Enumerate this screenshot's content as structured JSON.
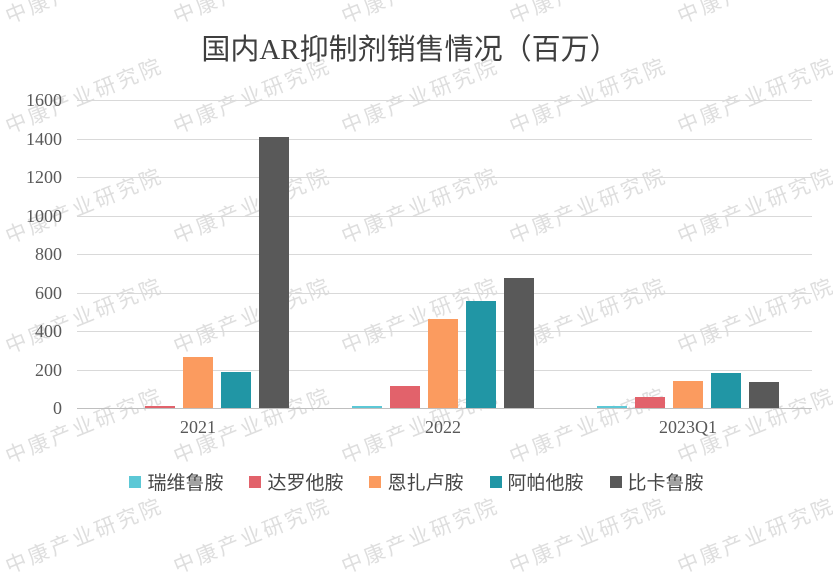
{
  "watermark": {
    "text": "中康产业研究院"
  },
  "chart_data": {
    "type": "bar",
    "title": "国内AR抑制剂销售情况（百万）",
    "categories": [
      "2021",
      "2022",
      "2023Q1"
    ],
    "series": [
      {
        "name": "瑞维鲁胺",
        "color": "#5CC8D6",
        "values": [
          0,
          8,
          12
        ]
      },
      {
        "name": "达罗他胺",
        "color": "#E2626B",
        "values": [
          10,
          115,
          55
        ]
      },
      {
        "name": "恩扎卢胺",
        "color": "#FB9B5F",
        "values": [
          265,
          465,
          140
        ]
      },
      {
        "name": "阿帕他胺",
        "color": "#2196A5",
        "values": [
          185,
          555,
          180
        ]
      },
      {
        "name": "比卡鲁胺",
        "color": "#595959",
        "values": [
          1410,
          675,
          135
        ]
      }
    ],
    "ylabel": "",
    "xlabel": "",
    "ylim": [
      0,
      1600
    ],
    "ytick_step": 200,
    "grid": true,
    "legend_position": "bottom",
    "colors": {
      "gridline": "#D9D9D9",
      "axis_line": "#BFBFBF",
      "tick_text": "#595959",
      "title_text": "#3F3F3F"
    }
  }
}
